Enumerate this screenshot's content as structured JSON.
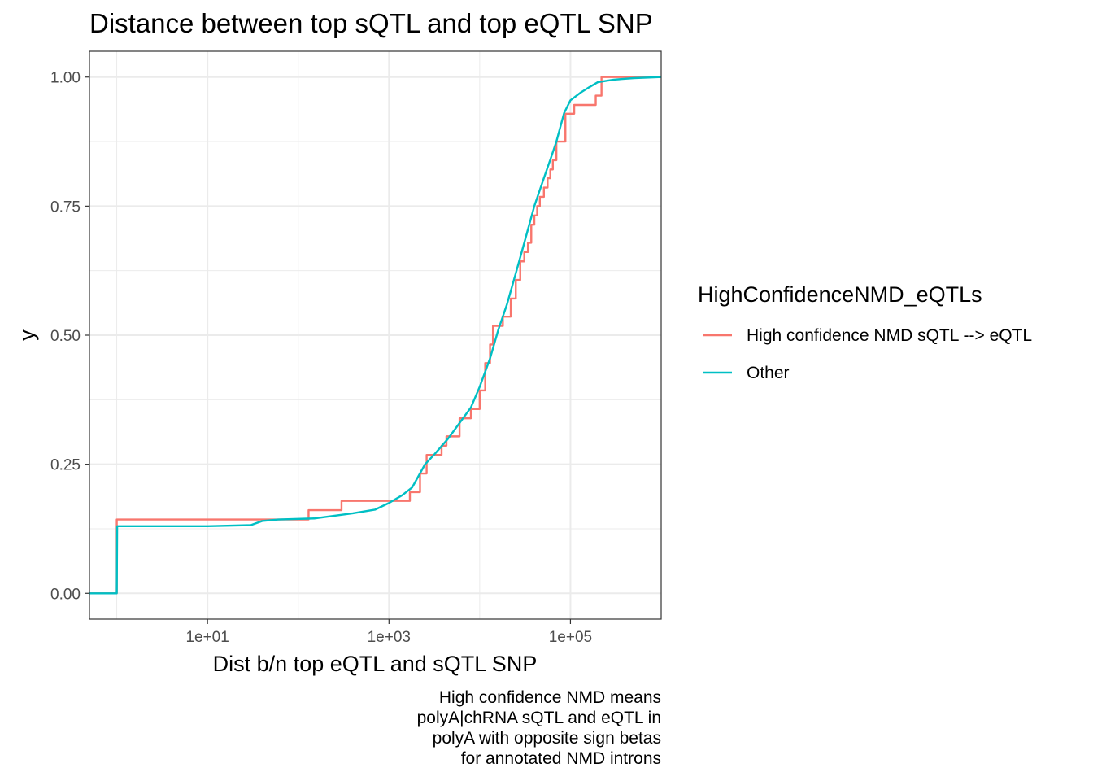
{
  "chart_data": {
    "type": "line",
    "title": "Distance between top sQTL and top eQTL SNP",
    "xlabel": "Dist b/n top eQTL and sQTL SNP",
    "ylabel": "y",
    "x_scale": "log10",
    "xlim": [
      0.5,
      1000000
    ],
    "ylim": [
      -0.05,
      1.05
    ],
    "x_ticks": [
      10,
      1000,
      100000
    ],
    "x_tick_labels": [
      "1e+01",
      "1e+03",
      "1e+05"
    ],
    "y_ticks": [
      0,
      0.25,
      0.5,
      0.75,
      1
    ],
    "y_tick_labels": [
      "0.00",
      "0.25",
      "0.50",
      "0.75",
      "1.00"
    ],
    "grid": true,
    "legend": {
      "title": "HighConfidenceNMD_eQTLs",
      "position": "right",
      "entries": [
        "High confidence NMD sQTL --> eQTL",
        "Other"
      ]
    },
    "caption_lines": [
      "High confidence NMD means",
      "polyA|chRNA sQTL and eQTL in",
      "polyA with opposite sign betas",
      "for annotated NMD introns"
    ],
    "series": [
      {
        "name": "High confidence NMD sQTL --> eQTL",
        "color": "#F8766D",
        "step": true,
        "x": [
          0.5,
          1,
          130,
          300,
          1700,
          2200,
          2600,
          3800,
          4300,
          6000,
          8000,
          10000,
          11500,
          13000,
          14000,
          18000,
          22000,
          25000,
          28000,
          31000,
          34000,
          37000,
          40000,
          43000,
          46000,
          51000,
          56000,
          60000,
          64000,
          70000,
          88000,
          110000,
          190000,
          220000,
          1000000
        ],
        "y": [
          0,
          0.143,
          0.161,
          0.179,
          0.196,
          0.232,
          0.268,
          0.286,
          0.304,
          0.339,
          0.357,
          0.393,
          0.446,
          0.482,
          0.518,
          0.536,
          0.571,
          0.607,
          0.643,
          0.661,
          0.679,
          0.714,
          0.732,
          0.75,
          0.768,
          0.786,
          0.804,
          0.821,
          0.839,
          0.875,
          0.929,
          0.946,
          0.964,
          1.0,
          1.0
        ]
      },
      {
        "name": "Other",
        "color": "#00BFC4",
        "step": false,
        "x": [
          0.5,
          1,
          1.01,
          10,
          30,
          40,
          60,
          150,
          400,
          700,
          1000,
          1400,
          1800,
          2500,
          3200,
          4500,
          6000,
          8000,
          10000,
          13000,
          16000,
          20000,
          25000,
          30000,
          40000,
          50000,
          60000,
          70000,
          85000,
          100000,
          130000,
          160000,
          200000,
          300000,
          500000,
          1000000
        ],
        "y": [
          0,
          0,
          0.13,
          0.13,
          0.132,
          0.14,
          0.143,
          0.145,
          0.155,
          0.162,
          0.175,
          0.19,
          0.205,
          0.25,
          0.27,
          0.3,
          0.33,
          0.36,
          0.4,
          0.455,
          0.51,
          0.56,
          0.62,
          0.67,
          0.75,
          0.8,
          0.84,
          0.875,
          0.93,
          0.955,
          0.97,
          0.98,
          0.99,
          0.995,
          0.998,
          1.0
        ]
      }
    ]
  }
}
